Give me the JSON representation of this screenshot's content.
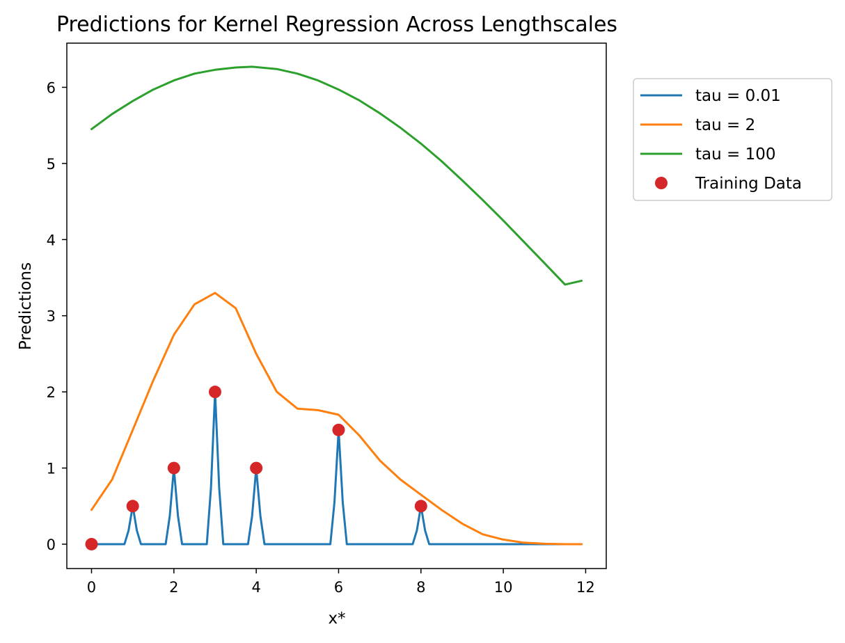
{
  "chart_data": {
    "type": "line",
    "title": "Predictions for Kernel Regression Across Lengthscales",
    "xlabel": "x*",
    "ylabel": "Predictions",
    "xlim": [
      -0.6,
      12.5
    ],
    "ylim": [
      -0.32,
      6.58
    ],
    "xticks": [
      0,
      2,
      4,
      6,
      8,
      10,
      12
    ],
    "yticks": [
      0,
      1,
      2,
      3,
      4,
      5,
      6
    ],
    "grid": false,
    "legend_position": "outside-top-right",
    "series": [
      {
        "name": "tau = 0.01",
        "color": "#1f77b4",
        "x": [
          0,
          0.8,
          0.9,
          1.0,
          1.1,
          1.2,
          1.8,
          1.9,
          2.0,
          2.1,
          2.2,
          2.8,
          2.9,
          3.0,
          3.1,
          3.2,
          3.8,
          3.9,
          4.0,
          4.1,
          4.2,
          5.8,
          5.9,
          6.0,
          6.1,
          6.2,
          7.8,
          7.9,
          8.0,
          8.1,
          8.2,
          11.9
        ],
        "y": [
          0,
          0,
          0.18,
          0.5,
          0.18,
          0,
          0,
          0.37,
          1.0,
          0.37,
          0,
          0,
          0.74,
          2.0,
          0.74,
          0,
          0,
          0.37,
          1.0,
          0.37,
          0,
          0,
          0.55,
          1.5,
          0.55,
          0,
          0,
          0.18,
          0.5,
          0.18,
          0,
          0
        ]
      },
      {
        "name": "tau = 2",
        "color": "#ff7f0e",
        "x": [
          0,
          0.5,
          1.0,
          1.5,
          2.0,
          2.5,
          3.0,
          3.5,
          4.0,
          4.5,
          5.0,
          5.5,
          6.0,
          6.5,
          7.0,
          7.5,
          8.0,
          8.5,
          9.0,
          9.5,
          10.0,
          10.5,
          11.0,
          11.5,
          11.9
        ],
        "y": [
          0.45,
          0.85,
          1.5,
          2.15,
          2.75,
          3.15,
          3.3,
          3.1,
          2.5,
          2.0,
          1.78,
          1.76,
          1.7,
          1.43,
          1.1,
          0.85,
          0.65,
          0.45,
          0.27,
          0.13,
          0.06,
          0.02,
          0.005,
          0.0,
          0.0
        ]
      },
      {
        "name": "tau = 100",
        "color": "#2ca02c",
        "x": [
          0,
          0.5,
          1.0,
          1.5,
          2.0,
          2.5,
          3.0,
          3.5,
          3.9,
          4.5,
          5.0,
          5.5,
          6.0,
          6.5,
          7.0,
          7.5,
          8.0,
          8.5,
          9.0,
          9.5,
          10.0,
          10.5,
          11.0,
          11.5,
          11.9
        ],
        "y": [
          5.45,
          5.65,
          5.82,
          5.97,
          6.09,
          6.18,
          6.23,
          6.26,
          6.27,
          6.24,
          6.18,
          6.09,
          5.97,
          5.83,
          5.66,
          5.47,
          5.26,
          5.03,
          4.78,
          4.52,
          4.25,
          3.97,
          3.69,
          3.41,
          3.46
        ]
      }
    ],
    "points": {
      "name": "Training Data",
      "color": "#d62728",
      "x": [
        0,
        1,
        2,
        3,
        4,
        6,
        8
      ],
      "y": [
        0,
        0.5,
        1.0,
        2.0,
        1.0,
        1.5,
        0.5
      ]
    }
  }
}
